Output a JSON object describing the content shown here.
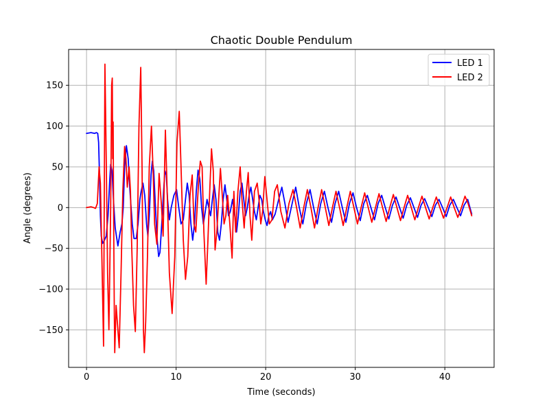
{
  "chart_data": {
    "type": "line",
    "title": "Chaotic Double Pendulum",
    "xlabel": "Time (seconds)",
    "ylabel": "Angle (degrees)",
    "xlim": [
      -2,
      45.5
    ],
    "ylim": [
      -196,
      194
    ],
    "x_ticks": [
      0,
      10,
      20,
      30,
      40
    ],
    "x_tick_labels": [
      "0",
      "10",
      "20",
      "30",
      "40"
    ],
    "y_ticks": [
      -150,
      -100,
      -50,
      0,
      50,
      100,
      150
    ],
    "y_tick_labels": [
      "−150",
      "−100",
      "−50",
      "0",
      "50",
      "100",
      "150"
    ],
    "grid": true,
    "legend_position": "top-right",
    "series": [
      {
        "name": "LED 1",
        "color": "#0000ff",
        "points": [
          [
            0,
            91
          ],
          [
            0.5,
            92
          ],
          [
            0.9,
            91
          ],
          [
            1.1,
            92
          ],
          [
            1.25,
            91
          ],
          [
            1.35,
            80
          ],
          [
            1.45,
            40
          ],
          [
            1.55,
            -10
          ],
          [
            1.65,
            -35
          ],
          [
            1.8,
            -44
          ],
          [
            2.0,
            -40
          ],
          [
            2.2,
            -35
          ],
          [
            2.4,
            -10
          ],
          [
            2.6,
            35
          ],
          [
            2.7,
            53
          ],
          [
            2.85,
            45
          ],
          [
            3.0,
            10
          ],
          [
            3.2,
            -25
          ],
          [
            3.5,
            -47
          ],
          [
            3.75,
            -30
          ],
          [
            3.95,
            -20
          ],
          [
            4.1,
            0
          ],
          [
            4.25,
            50
          ],
          [
            4.45,
            76
          ],
          [
            4.65,
            60
          ],
          [
            4.85,
            20
          ],
          [
            5.1,
            -20
          ],
          [
            5.3,
            -38
          ],
          [
            5.55,
            -38
          ],
          [
            5.75,
            -20
          ],
          [
            5.95,
            10
          ],
          [
            6.1,
            20
          ],
          [
            6.3,
            30
          ],
          [
            6.5,
            15
          ],
          [
            6.7,
            -20
          ],
          [
            6.85,
            -35
          ],
          [
            7.0,
            -10
          ],
          [
            7.2,
            40
          ],
          [
            7.35,
            57
          ],
          [
            7.5,
            45
          ],
          [
            7.65,
            10
          ],
          [
            7.85,
            -35
          ],
          [
            8.05,
            -60
          ],
          [
            8.2,
            -55
          ],
          [
            8.4,
            -20
          ],
          [
            8.6,
            20
          ],
          [
            8.75,
            45
          ],
          [
            8.9,
            40
          ],
          [
            9.05,
            10
          ],
          [
            9.25,
            -15
          ],
          [
            9.45,
            0
          ],
          [
            9.75,
            15
          ],
          [
            10.05,
            22
          ],
          [
            10.3,
            0
          ],
          [
            10.55,
            -20
          ],
          [
            10.8,
            -15
          ],
          [
            11.05,
            10
          ],
          [
            11.25,
            30
          ],
          [
            11.45,
            15
          ],
          [
            11.65,
            -20
          ],
          [
            11.85,
            -40
          ],
          [
            12.05,
            -20
          ],
          [
            12.25,
            20
          ],
          [
            12.45,
            46
          ],
          [
            12.65,
            35
          ],
          [
            12.85,
            0
          ],
          [
            13.05,
            -20
          ],
          [
            13.25,
            -5
          ],
          [
            13.45,
            10
          ],
          [
            13.65,
            0
          ],
          [
            13.85,
            -10
          ],
          [
            14.05,
            10
          ],
          [
            14.25,
            28
          ],
          [
            14.45,
            10
          ],
          [
            14.65,
            -30
          ],
          [
            14.85,
            -40
          ],
          [
            15.05,
            -20
          ],
          [
            15.25,
            10
          ],
          [
            15.45,
            28
          ],
          [
            15.65,
            10
          ],
          [
            15.85,
            -10
          ],
          [
            16.05,
            -5
          ],
          [
            16.3,
            10
          ],
          [
            16.55,
            -10
          ],
          [
            16.75,
            -30
          ],
          [
            16.95,
            -10
          ],
          [
            17.15,
            20
          ],
          [
            17.35,
            30
          ],
          [
            17.55,
            10
          ],
          [
            17.75,
            -10
          ],
          [
            17.95,
            0
          ],
          [
            18.15,
            15
          ],
          [
            18.35,
            25
          ],
          [
            18.55,
            10
          ],
          [
            18.75,
            -5
          ],
          [
            18.95,
            -15
          ],
          [
            19.15,
            0
          ],
          [
            19.35,
            15
          ],
          [
            19.55,
            10
          ],
          [
            19.75,
            -5
          ],
          [
            19.95,
            -15
          ],
          [
            20.15,
            -22
          ],
          [
            20.35,
            -10
          ],
          [
            20.55,
            -5
          ],
          [
            20.75,
            -15
          ],
          [
            21.05,
            -8
          ],
          [
            21.45,
            10
          ],
          [
            21.8,
            25
          ],
          [
            22.15,
            5
          ],
          [
            22.5,
            -18
          ],
          [
            22.95,
            5
          ],
          [
            23.35,
            25
          ],
          [
            23.75,
            0
          ],
          [
            24.15,
            -20
          ],
          [
            24.55,
            5
          ],
          [
            24.95,
            22
          ],
          [
            25.35,
            0
          ],
          [
            25.75,
            -20
          ],
          [
            26.15,
            5
          ],
          [
            26.55,
            20
          ],
          [
            26.95,
            0
          ],
          [
            27.35,
            -18
          ],
          [
            27.75,
            5
          ],
          [
            28.15,
            20
          ],
          [
            28.55,
            0
          ],
          [
            28.95,
            -18
          ],
          [
            29.35,
            5
          ],
          [
            29.75,
            18
          ],
          [
            30.15,
            0
          ],
          [
            30.55,
            -16
          ],
          [
            30.95,
            5
          ],
          [
            31.35,
            15
          ],
          [
            31.75,
            0
          ],
          [
            32.15,
            -15
          ],
          [
            32.55,
            5
          ],
          [
            32.95,
            15
          ],
          [
            33.35,
            0
          ],
          [
            33.75,
            -14
          ],
          [
            34.15,
            3
          ],
          [
            34.55,
            13
          ],
          [
            34.95,
            0
          ],
          [
            35.35,
            -13
          ],
          [
            35.75,
            3
          ],
          [
            36.15,
            12
          ],
          [
            36.55,
            0
          ],
          [
            36.95,
            -12
          ],
          [
            37.35,
            3
          ],
          [
            37.75,
            11
          ],
          [
            38.15,
            0
          ],
          [
            38.55,
            -11
          ],
          [
            38.95,
            3
          ],
          [
            39.35,
            10
          ],
          [
            39.75,
            0
          ],
          [
            40.15,
            -11
          ],
          [
            40.55,
            3
          ],
          [
            40.95,
            10
          ],
          [
            41.35,
            0
          ],
          [
            41.75,
            -10
          ],
          [
            42.15,
            3
          ],
          [
            42.55,
            10
          ],
          [
            43.0,
            -8
          ]
        ]
      },
      {
        "name": "LED 2",
        "color": "#ff0000",
        "points": [
          [
            0,
            0
          ],
          [
            0.5,
            1
          ],
          [
            0.8,
            0
          ],
          [
            1.0,
            -1
          ],
          [
            1.2,
            5
          ],
          [
            1.4,
            50
          ],
          [
            1.55,
            30
          ],
          [
            1.75,
            -80
          ],
          [
            1.9,
            -170
          ],
          [
            2.05,
            176
          ],
          [
            2.2,
            60
          ],
          [
            2.35,
            -80
          ],
          [
            2.5,
            -150
          ],
          [
            2.7,
            0
          ],
          [
            2.8,
            150
          ],
          [
            2.87,
            159
          ],
          [
            2.92,
            60
          ],
          [
            2.97,
            105
          ],
          [
            3.0,
            30
          ],
          [
            3.05,
            -50
          ],
          [
            3.1,
            -130
          ],
          [
            3.15,
            -178
          ],
          [
            3.3,
            -120
          ],
          [
            3.5,
            -150
          ],
          [
            3.65,
            -172
          ],
          [
            3.85,
            -80
          ],
          [
            4.05,
            20
          ],
          [
            4.25,
            75
          ],
          [
            4.4,
            60
          ],
          [
            4.55,
            25
          ],
          [
            4.75,
            50
          ],
          [
            4.9,
            20
          ],
          [
            5.05,
            -50
          ],
          [
            5.25,
            -120
          ],
          [
            5.45,
            -152
          ],
          [
            5.65,
            -50
          ],
          [
            5.85,
            100
          ],
          [
            6.05,
            172
          ],
          [
            6.2,
            50
          ],
          [
            6.35,
            -150
          ],
          [
            6.45,
            -178
          ],
          [
            6.6,
            -140
          ],
          [
            6.8,
            -60
          ],
          [
            7.0,
            50
          ],
          [
            7.25,
            100
          ],
          [
            7.45,
            40
          ],
          [
            7.6,
            -20
          ],
          [
            7.85,
            -45
          ],
          [
            8.1,
            42
          ],
          [
            8.35,
            5
          ],
          [
            8.55,
            -35
          ],
          [
            8.8,
            95
          ],
          [
            9.0,
            20
          ],
          [
            9.25,
            -80
          ],
          [
            9.55,
            -130
          ],
          [
            9.85,
            -60
          ],
          [
            10.1,
            80
          ],
          [
            10.35,
            118
          ],
          [
            10.55,
            50
          ],
          [
            10.8,
            -40
          ],
          [
            11.05,
            -88
          ],
          [
            11.3,
            -60
          ],
          [
            11.55,
            15
          ],
          [
            11.8,
            40
          ],
          [
            12.0,
            -20
          ],
          [
            12.2,
            -30
          ],
          [
            12.5,
            30
          ],
          [
            12.7,
            57
          ],
          [
            12.9,
            50
          ],
          [
            13.1,
            -30
          ],
          [
            13.35,
            -94
          ],
          [
            13.55,
            -40
          ],
          [
            13.75,
            20
          ],
          [
            13.95,
            72
          ],
          [
            14.15,
            45
          ],
          [
            14.35,
            -52
          ],
          [
            14.55,
            -30
          ],
          [
            14.75,
            10
          ],
          [
            14.95,
            48
          ],
          [
            15.15,
            15
          ],
          [
            15.35,
            -20
          ],
          [
            15.55,
            -10
          ],
          [
            15.75,
            15
          ],
          [
            16.0,
            -20
          ],
          [
            16.25,
            -62
          ],
          [
            16.45,
            20
          ],
          [
            16.65,
            -30
          ],
          [
            16.9,
            20
          ],
          [
            17.15,
            50
          ],
          [
            17.35,
            10
          ],
          [
            17.6,
            -25
          ],
          [
            17.85,
            20
          ],
          [
            18.05,
            43
          ],
          [
            18.25,
            -10
          ],
          [
            18.45,
            -40
          ],
          [
            18.75,
            20
          ],
          [
            19.05,
            30
          ],
          [
            19.25,
            10
          ],
          [
            19.45,
            -20
          ],
          [
            19.65,
            -5
          ],
          [
            19.9,
            38
          ],
          [
            20.15,
            10
          ],
          [
            20.4,
            -20
          ],
          [
            20.7,
            -15
          ],
          [
            21.0,
            20
          ],
          [
            21.3,
            28
          ],
          [
            21.7,
            -5
          ],
          [
            22.15,
            -25
          ],
          [
            22.6,
            5
          ],
          [
            23.05,
            22
          ],
          [
            23.45,
            0
          ],
          [
            23.85,
            -25
          ],
          [
            24.25,
            0
          ],
          [
            24.65,
            22
          ],
          [
            25.05,
            0
          ],
          [
            25.45,
            -25
          ],
          [
            25.85,
            0
          ],
          [
            26.25,
            22
          ],
          [
            26.65,
            0
          ],
          [
            27.05,
            -22
          ],
          [
            27.45,
            0
          ],
          [
            27.85,
            20
          ],
          [
            28.25,
            0
          ],
          [
            28.65,
            -22
          ],
          [
            29.05,
            0
          ],
          [
            29.45,
            20
          ],
          [
            29.85,
            0
          ],
          [
            30.25,
            -20
          ],
          [
            30.65,
            0
          ],
          [
            31.05,
            18
          ],
          [
            31.45,
            0
          ],
          [
            31.85,
            -18
          ],
          [
            32.25,
            0
          ],
          [
            32.65,
            17
          ],
          [
            33.05,
            0
          ],
          [
            33.45,
            -17
          ],
          [
            33.85,
            0
          ],
          [
            34.25,
            16
          ],
          [
            34.65,
            0
          ],
          [
            35.05,
            -16
          ],
          [
            35.45,
            0
          ],
          [
            35.85,
            15
          ],
          [
            36.25,
            0
          ],
          [
            36.65,
            -15
          ],
          [
            37.05,
            0
          ],
          [
            37.45,
            14
          ],
          [
            37.85,
            0
          ],
          [
            38.25,
            -14
          ],
          [
            38.65,
            0
          ],
          [
            39.05,
            13
          ],
          [
            39.45,
            0
          ],
          [
            39.85,
            -13
          ],
          [
            40.25,
            0
          ],
          [
            40.65,
            13
          ],
          [
            41.05,
            0
          ],
          [
            41.45,
            -12
          ],
          [
            41.85,
            0
          ],
          [
            42.25,
            14
          ],
          [
            42.6,
            5
          ],
          [
            43.0,
            -10
          ]
        ]
      }
    ]
  }
}
